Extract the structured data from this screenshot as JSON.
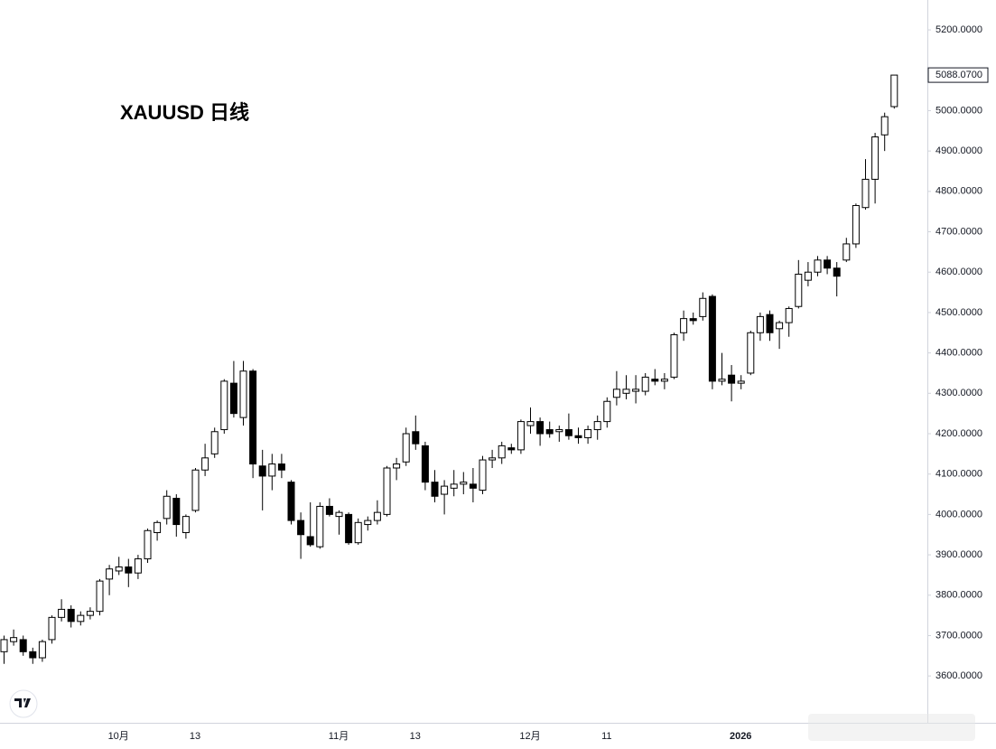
{
  "chart_data": {
    "type": "candlestick",
    "title": "XAUUSD 日线",
    "categories": [
      null,
      null,
      null,
      null,
      null,
      null,
      null,
      null,
      null,
      null,
      null,
      null,
      "10月",
      null,
      null,
      null,
      null,
      null,
      null,
      null,
      "13",
      null,
      null,
      null,
      null,
      null,
      null,
      null,
      null,
      null,
      null,
      null,
      null,
      null,
      null,
      "11月",
      null,
      null,
      null,
      null,
      null,
      null,
      null,
      "13",
      null,
      null,
      null,
      null,
      null,
      null,
      null,
      null,
      null,
      null,
      null,
      "12月",
      null,
      null,
      null,
      null,
      null,
      null,
      null,
      "11",
      null,
      null,
      null,
      null,
      null,
      null,
      null,
      null,
      null,
      null,
      null,
      null,
      null,
      "2026",
      null,
      null,
      null,
      null,
      null,
      null,
      null,
      null,
      null,
      null,
      null,
      null,
      null,
      null,
      null,
      null
    ],
    "ohlc": [
      [
        3660,
        3700,
        3630,
        3690
      ],
      [
        3685,
        3715,
        3675,
        3695
      ],
      [
        3690,
        3700,
        3650,
        3660
      ],
      [
        3660,
        3670,
        3630,
        3645
      ],
      [
        3645,
        3690,
        3635,
        3685
      ],
      [
        3690,
        3750,
        3680,
        3745
      ],
      [
        3745,
        3790,
        3735,
        3765
      ],
      [
        3765,
        3775,
        3720,
        3735
      ],
      [
        3735,
        3760,
        3725,
        3750
      ],
      [
        3750,
        3770,
        3740,
        3760
      ],
      [
        3760,
        3840,
        3750,
        3835
      ],
      [
        3840,
        3875,
        3800,
        3865
      ],
      [
        3860,
        3895,
        3850,
        3870
      ],
      [
        3870,
        3890,
        3820,
        3855
      ],
      [
        3855,
        3900,
        3840,
        3890
      ],
      [
        3890,
        3965,
        3880,
        3960
      ],
      [
        3955,
        3985,
        3935,
        3980
      ],
      [
        3990,
        4060,
        3975,
        4045
      ],
      [
        4040,
        4050,
        3945,
        3975
      ],
      [
        3955,
        4000,
        3940,
        3995
      ],
      [
        4010,
        4115,
        4005,
        4110
      ],
      [
        4110,
        4175,
        4095,
        4140
      ],
      [
        4150,
        4215,
        4140,
        4205
      ],
      [
        4210,
        4335,
        4200,
        4330
      ],
      [
        4325,
        4380,
        4240,
        4250
      ],
      [
        4240,
        4380,
        4220,
        4355
      ],
      [
        4355,
        4360,
        4090,
        4125
      ],
      [
        4120,
        4160,
        4010,
        4095
      ],
      [
        4095,
        4150,
        4060,
        4125
      ],
      [
        4125,
        4150,
        4090,
        4110
      ],
      [
        4080,
        4085,
        3975,
        3985
      ],
      [
        3985,
        4005,
        3890,
        3950
      ],
      [
        3945,
        4030,
        3920,
        3925
      ],
      [
        3920,
        4030,
        3915,
        4020
      ],
      [
        4020,
        4040,
        3995,
        4000
      ],
      [
        3995,
        4010,
        3950,
        4005
      ],
      [
        4000,
        4005,
        3925,
        3930
      ],
      [
        3930,
        3990,
        3925,
        3980
      ],
      [
        3975,
        3995,
        3960,
        3985
      ],
      [
        3985,
        4035,
        3975,
        4005
      ],
      [
        4000,
        4120,
        3995,
        4115
      ],
      [
        4115,
        4140,
        4085,
        4125
      ],
      [
        4130,
        4215,
        4120,
        4200
      ],
      [
        4205,
        4245,
        4160,
        4175
      ],
      [
        4170,
        4180,
        4060,
        4080
      ],
      [
        4080,
        4110,
        4030,
        4045
      ],
      [
        4050,
        4085,
        4000,
        4070
      ],
      [
        4065,
        4110,
        4045,
        4075
      ],
      [
        4075,
        4105,
        4050,
        4080
      ],
      [
        4075,
        4115,
        4030,
        4065
      ],
      [
        4060,
        4145,
        4050,
        4135
      ],
      [
        4135,
        4160,
        4115,
        4140
      ],
      [
        4140,
        4180,
        4125,
        4170
      ],
      [
        4165,
        4175,
        4150,
        4160
      ],
      [
        4160,
        4235,
        4150,
        4230
      ],
      [
        4220,
        4265,
        4200,
        4230
      ],
      [
        4230,
        4240,
        4170,
        4200
      ],
      [
        4210,
        4230,
        4190,
        4200
      ],
      [
        4205,
        4220,
        4180,
        4210
      ],
      [
        4210,
        4250,
        4185,
        4195
      ],
      [
        4195,
        4215,
        4175,
        4190
      ],
      [
        4190,
        4220,
        4175,
        4210
      ],
      [
        4210,
        4245,
        4185,
        4230
      ],
      [
        4230,
        4290,
        4215,
        4280
      ],
      [
        4290,
        4355,
        4270,
        4310
      ],
      [
        4300,
        4345,
        4285,
        4310
      ],
      [
        4305,
        4345,
        4275,
        4310
      ],
      [
        4305,
        4350,
        4295,
        4340
      ],
      [
        4335,
        4360,
        4320,
        4330
      ],
      [
        4330,
        4350,
        4310,
        4335
      ],
      [
        4340,
        4450,
        4335,
        4445
      ],
      [
        4450,
        4505,
        4430,
        4485
      ],
      [
        4485,
        4500,
        4470,
        4480
      ],
      [
        4490,
        4550,
        4480,
        4535
      ],
      [
        4540,
        4545,
        4310,
        4330
      ],
      [
        4330,
        4400,
        4320,
        4335
      ],
      [
        4345,
        4370,
        4280,
        4325
      ],
      [
        4325,
        4345,
        4310,
        4330
      ],
      [
        4350,
        4455,
        4345,
        4450
      ],
      [
        4450,
        4500,
        4430,
        4490
      ],
      [
        4495,
        4505,
        4430,
        4450
      ],
      [
        4460,
        4480,
        4410,
        4475
      ],
      [
        4475,
        4515,
        4440,
        4510
      ],
      [
        4515,
        4630,
        4510,
        4595
      ],
      [
        4580,
        4625,
        4565,
        4600
      ],
      [
        4600,
        4640,
        4590,
        4630
      ],
      [
        4630,
        4640,
        4595,
        4610
      ],
      [
        4610,
        4625,
        4540,
        4590
      ],
      [
        4630,
        4685,
        4625,
        4670
      ],
      [
        4670,
        4770,
        4660,
        4765
      ],
      [
        4760,
        4880,
        4755,
        4830
      ],
      [
        4830,
        4945,
        4770,
        4935
      ],
      [
        4940,
        4995,
        4900,
        4985
      ],
      [
        5010,
        5088.07,
        5005,
        5088.07
      ]
    ],
    "last_label": "5088.0700",
    "up_color": "#ffffff",
    "down_color": "#000000",
    "wick_color": "#000000",
    "ylim": [
      3484,
      5274
    ],
    "yticks": [
      {
        "value": 3600,
        "label": "3600.0000"
      },
      {
        "value": 3700,
        "label": "3700.0000"
      },
      {
        "value": 3800,
        "label": "3800.0000"
      },
      {
        "value": 3900,
        "label": "3900.0000"
      },
      {
        "value": 4000,
        "label": "4000.0000"
      },
      {
        "value": 4100,
        "label": "4100.0000"
      },
      {
        "value": 4200,
        "label": "4200.0000"
      },
      {
        "value": 4300,
        "label": "4300.0000"
      },
      {
        "value": 4400,
        "label": "4400.0000"
      },
      {
        "value": 4500,
        "label": "4500.0000"
      },
      {
        "value": 4600,
        "label": "4600.0000"
      },
      {
        "value": 4700,
        "label": "4700.0000"
      },
      {
        "value": 4800,
        "label": "4800.0000"
      },
      {
        "value": 4900,
        "label": "4900.0000"
      },
      {
        "value": 5000,
        "label": "5000.0000"
      },
      {
        "value": 5200,
        "label": "5200.0000"
      }
    ]
  }
}
